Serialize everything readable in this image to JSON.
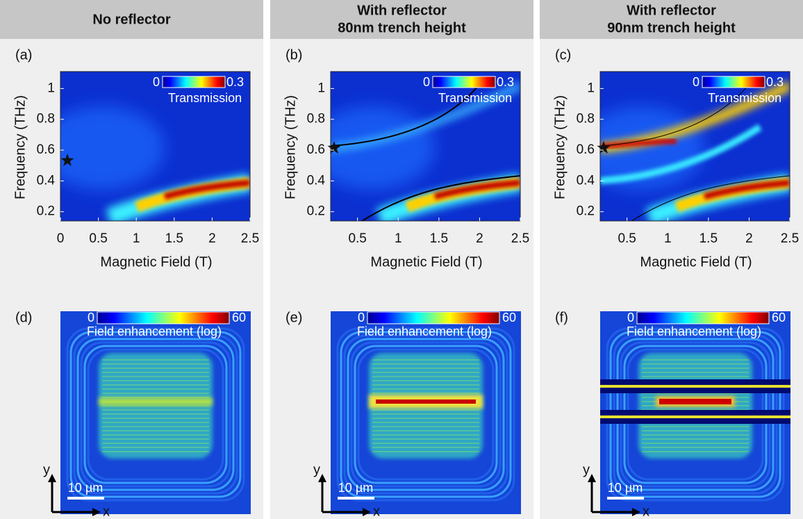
{
  "columns": [
    {
      "header": [
        "No reflector"
      ],
      "top": {
        "label": "(a)",
        "xlabel": "Magnetic Field (T)",
        "ylabel": "Frequency (THz)",
        "xlim": [
          0,
          2.5
        ],
        "ylim": [
          0.14,
          1.11
        ],
        "xticks": [
          0,
          0.5,
          1,
          1.5,
          2,
          2.5
        ],
        "yticks": [
          0.2,
          0.4,
          0.6,
          0.8,
          1
        ],
        "cb_min": 0,
        "cb_max": 0.3,
        "cb_label": "Transmission"
      },
      "bottom": {
        "label": "(d)",
        "cb_min": 0,
        "cb_max": 60,
        "cb_label": "Field enhancement (log)",
        "scale": "10 µm",
        "ax_y": "y",
        "ax_x": "x"
      }
    },
    {
      "header": [
        "With reflector",
        "80nm trench height"
      ],
      "top": {
        "label": "(b)",
        "xlabel": "Magnetic Field (T)",
        "ylabel": "Frequency (THz)",
        "xlim": [
          0.17,
          2.5
        ],
        "ylim": [
          0.14,
          1.11
        ],
        "xticks": [
          0.5,
          1,
          1.5,
          2,
          2.5
        ],
        "yticks": [
          0.2,
          0.4,
          0.6,
          0.8,
          1
        ],
        "cb_min": 0,
        "cb_max": 0.3,
        "cb_label": "Transmission"
      },
      "bottom": {
        "label": "(e)",
        "cb_min": 0,
        "cb_max": 60,
        "cb_label": "Field enhancement (log)",
        "scale": "10 µm",
        "ax_y": "y",
        "ax_x": "x"
      }
    },
    {
      "header": [
        "With reflector",
        "90nm trench height"
      ],
      "top": {
        "label": "(c)",
        "xlabel": "Magnetic Field (T)",
        "ylabel": "Frequency (THz)",
        "xlim": [
          0.17,
          2.5
        ],
        "ylim": [
          0.14,
          1.11
        ],
        "xticks": [
          0.5,
          1,
          1.5,
          2,
          2.5
        ],
        "yticks": [
          0.2,
          0.4,
          0.6,
          0.8,
          1
        ],
        "cb_min": 0,
        "cb_max": 0.3,
        "cb_label": "Transmission"
      },
      "bottom": {
        "label": "(f)",
        "cb_min": 0,
        "cb_max": 60,
        "cb_label": "Field enhancement (log)",
        "scale": "10 µm",
        "ax_y": "y",
        "ax_x": "x"
      }
    }
  ]
}
